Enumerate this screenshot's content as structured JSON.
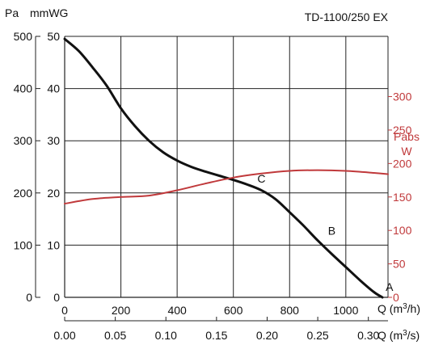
{
  "chart_data": {
    "type": "line",
    "title": "TD-1100/250 EX",
    "axes": {
      "y_left_pa": {
        "unit": "Pa",
        "ticks": [
          0,
          100,
          200,
          300,
          400,
          500
        ],
        "range": [
          0,
          500
        ]
      },
      "y_left_mmwg": {
        "unit": "mmWG",
        "ticks": [
          0,
          10,
          20,
          30,
          40,
          50
        ],
        "range": [
          0,
          50
        ]
      },
      "y_right_w": {
        "title": "Pabs",
        "unit": "W",
        "ticks": [
          0,
          50,
          100,
          150,
          200,
          250,
          300
        ],
        "range": [
          0,
          390
        ]
      },
      "x_m3h": {
        "label": "Q (m³/h)",
        "ticks": [
          0,
          200,
          400,
          600,
          800,
          1000
        ],
        "range": [
          0,
          1150
        ]
      },
      "x_m3s": {
        "label": "Q (m³/s)",
        "ticks": [
          "0.00",
          "0.05",
          "0.10",
          "0.15",
          "0.20",
          "0.25",
          "0.30"
        ],
        "tick_values": [
          0,
          0.05,
          0.1,
          0.15,
          0.2,
          0.25,
          0.3
        ],
        "range": [
          0,
          0.3194
        ]
      }
    },
    "series": [
      {
        "key": "pressure",
        "axis": "y_left_pa",
        "color": "#111111",
        "x": [
          0,
          50,
          100,
          150,
          200,
          250,
          300,
          350,
          400,
          450,
          500,
          550,
          600,
          650,
          700,
          750,
          800,
          850,
          900,
          950,
          1000,
          1050,
          1100,
          1130
        ],
        "y": [
          495,
          472,
          440,
          405,
          362,
          328,
          300,
          278,
          262,
          250,
          241,
          233,
          225,
          216,
          205,
          188,
          163,
          137,
          109,
          83,
          58,
          33,
          10,
          0
        ]
      },
      {
        "key": "power",
        "axis": "y_right_w",
        "color": "#c0393b",
        "x": [
          0,
          100,
          200,
          300,
          400,
          500,
          600,
          700,
          800,
          900,
          1000,
          1100,
          1150
        ],
        "y": [
          140,
          147,
          150,
          152,
          160,
          170,
          179,
          185,
          189,
          190,
          189,
          186,
          184
        ]
      }
    ],
    "annotations": [
      {
        "text": "C",
        "x": 700,
        "y": 220
      },
      {
        "text": "B",
        "x": 950,
        "y": 120
      },
      {
        "text": "A",
        "x": 1155,
        "y": 12
      }
    ],
    "grid": true
  }
}
